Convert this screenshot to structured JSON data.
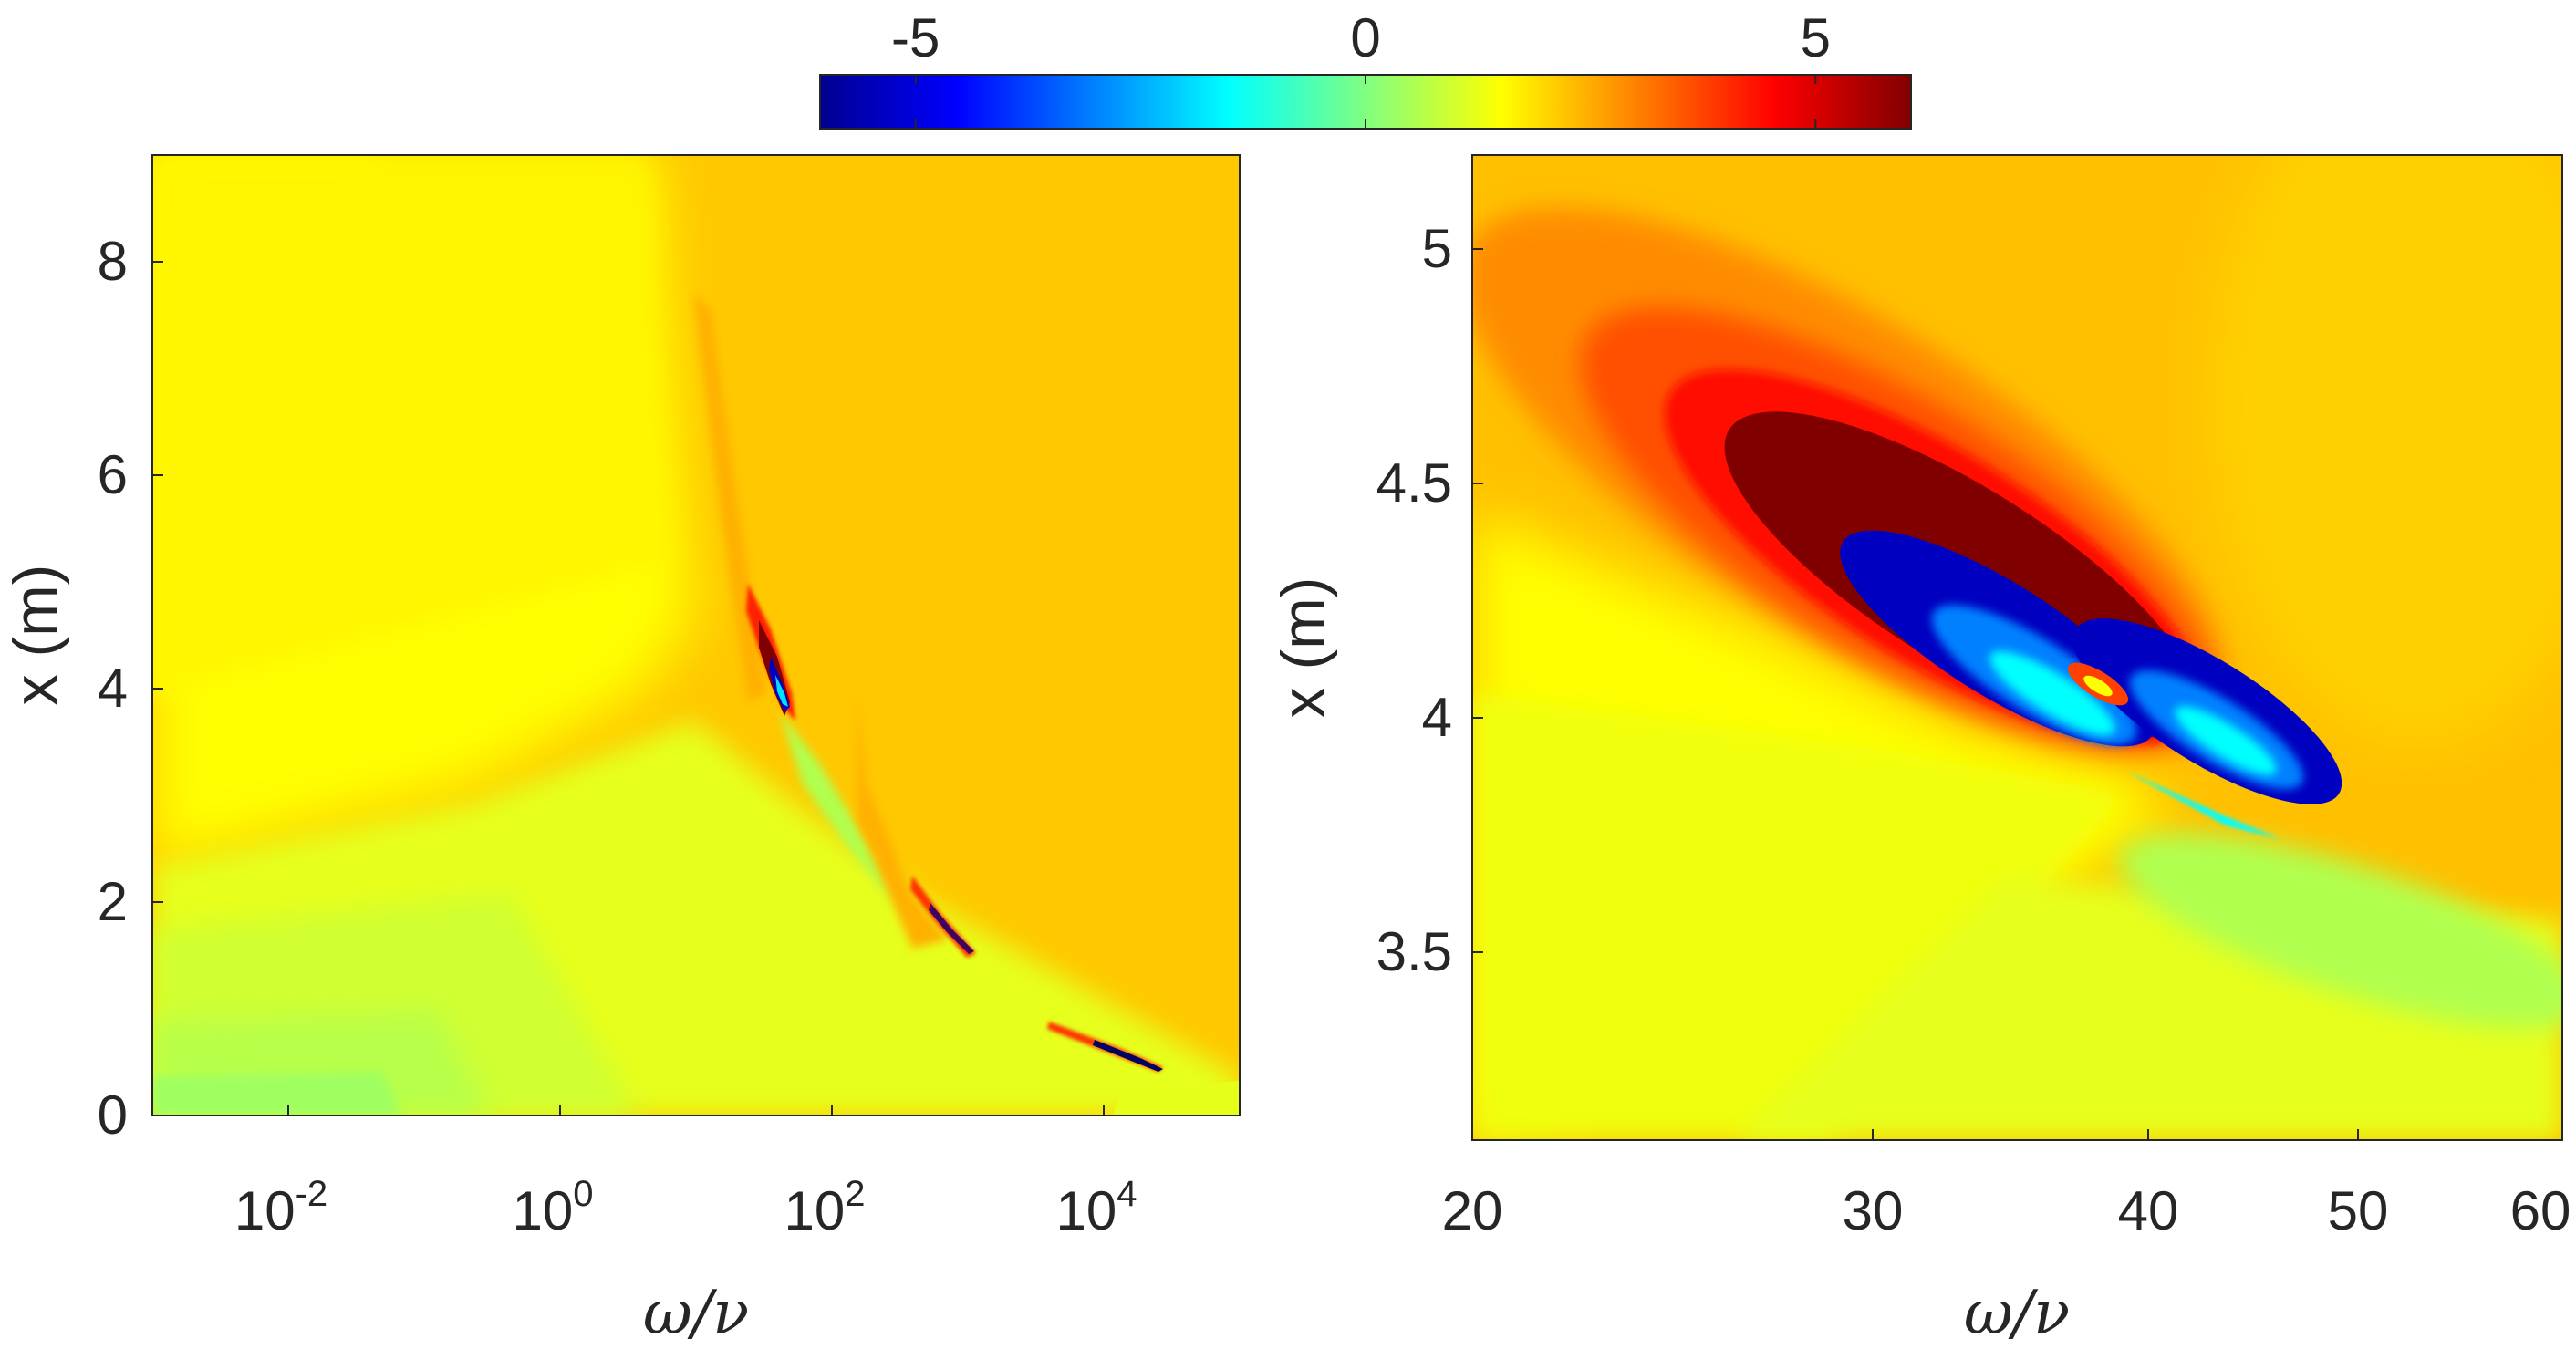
{
  "chart_data": [
    {
      "type": "heatmap",
      "panel": "left",
      "x_scale": "log",
      "xlim": [
        0.001,
        100000
      ],
      "ylim": [
        0,
        9
      ],
      "x_ticks": [
        {
          "base": "10",
          "exp": "-2",
          "value": 0.01
        },
        {
          "base": "10",
          "exp": "0",
          "value": 1
        },
        {
          "base": "10",
          "exp": "2",
          "value": 100
        },
        {
          "base": "10",
          "exp": "4",
          "value": 10000
        }
      ],
      "y_ticks": [
        "0",
        "2",
        "4",
        "6",
        "8"
      ],
      "xlabel": "ω/ν",
      "ylabel": "x (m)",
      "colormap": "jet",
      "clim": [
        -6,
        6
      ],
      "background_levels": {
        "upper_right": 2.4,
        "upper_left": 0.8,
        "lower": -0.2
      },
      "features": [
        {
          "description": "resonance ridge",
          "x": 30,
          "y": 4.0,
          "value_range": [
            -6,
            6
          ]
        },
        {
          "description": "resonance ridge",
          "x": 800,
          "y": 1.6,
          "value_range": [
            -6,
            6
          ]
        },
        {
          "description": "resonance ridge",
          "x": 25000,
          "y": 0.45,
          "value_range": [
            -6,
            6
          ]
        }
      ]
    },
    {
      "type": "heatmap",
      "panel": "right",
      "x_scale": "log",
      "xlim": [
        20,
        60
      ],
      "ylim": [
        3.15,
        5.25
      ],
      "x_ticks": [
        "20",
        "30",
        "40",
        "50",
        "60"
      ],
      "y_ticks": [
        "3.5",
        "4",
        "4.5",
        "5"
      ],
      "xlabel": "ω/ν",
      "ylabel": "x (m)",
      "colormap": "jet",
      "clim": [
        -6,
        6
      ],
      "features": [
        {
          "description": "positive lobe",
          "x": 31,
          "y": 4.45,
          "value": 6
        },
        {
          "description": "negative lobe",
          "x": 33,
          "y": 4.15,
          "value": -6
        },
        {
          "description": "negative lobe",
          "x": 44,
          "y": 3.98,
          "value": -6
        }
      ]
    }
  ],
  "colorbar": {
    "ticks": [
      "-5",
      "0",
      "5"
    ],
    "tick_values": [
      -5,
      0,
      5
    ],
    "range": [
      -6,
      6
    ],
    "colormap": "jet"
  },
  "colors": {
    "jet_dark_blue": "#00008f",
    "jet_blue": "#0000ff",
    "jet_cyan": "#00ffff",
    "jet_green": "#80ff80",
    "jet_yellow": "#ffff00",
    "jet_orange": "#ff8000",
    "jet_red": "#ff0000",
    "jet_dark_red": "#800000",
    "axis_text": "#262626"
  }
}
